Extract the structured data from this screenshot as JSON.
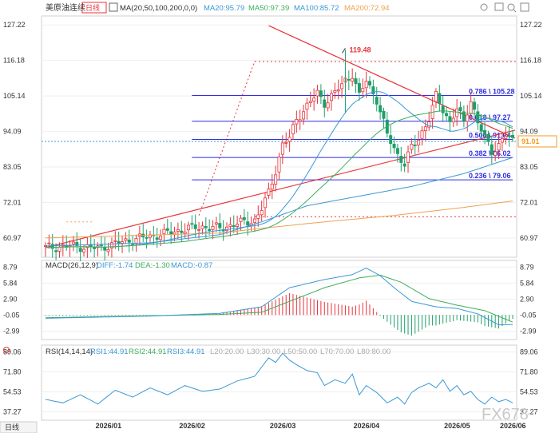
{
  "header": {
    "symbol": "美原油连续",
    "period": "日线",
    "ma_label": "MA(20,50,100,200,0,0)",
    "ma20": "MA20:95.79",
    "ma50": "MA50:97.39",
    "ma100": "MA100:85.72",
    "ma200": "MA200:72.94"
  },
  "colors": {
    "up": "#e8333a",
    "down": "#1f9f6a",
    "ma20": "#3c98d6",
    "ma50": "#3fae5a",
    "ma100": "#3c98d6",
    "ma200": "#f0a050",
    "fib": "#2e2ee0",
    "trend": "#e8333a",
    "price_tag": "#f59a23",
    "macd_diff": "#3c98d6",
    "macd_dea": "#3fae5a",
    "rsi": "#3c98d6"
  },
  "chart_data": [
    {
      "type": "candlestick",
      "x": [
        "2026/01",
        "2026/02",
        "2026/03",
        "2026/04",
        "2026/05",
        "2026/06"
      ],
      "y_ticks": [
        "127.22",
        "116.18",
        "105.14",
        "94.09",
        "83.05",
        "72.01",
        "60.97"
      ],
      "ylim": [
        55.0,
        130.0
      ],
      "high_label": "119.48",
      "current_price": "91.01",
      "fib_levels": [
        {
          "label": "0.786 \\ 105.28",
          "value": 105.28
        },
        {
          "label": "0.618 \\ 97.27",
          "value": 97.27
        },
        {
          "label": "0.500 \\ 91.64",
          "value": 91.64
        },
        {
          "label": "0.382 \\ 86.02",
          "value": 86.02
        },
        {
          "label": "0.236 \\ 79.06",
          "value": 79.06
        }
      ],
      "dotted_levels": [
        115.8,
        67.6
      ],
      "close_path": [
        [
          0,
          58.0
        ],
        [
          8,
          58.5
        ],
        [
          15,
          57.8
        ],
        [
          20,
          59.2
        ],
        [
          25,
          60.5
        ],
        [
          30,
          61.5
        ],
        [
          35,
          62.5
        ],
        [
          40,
          63.8
        ],
        [
          45,
          64.5
        ],
        [
          50,
          64.0
        ],
        [
          55,
          65.5
        ],
        [
          60,
          66.5
        ],
        [
          62,
          70
        ],
        [
          64,
          75
        ],
        [
          66,
          82
        ],
        [
          68,
          90
        ],
        [
          70,
          92
        ],
        [
          72,
          98
        ],
        [
          75,
          102
        ],
        [
          78,
          106
        ],
        [
          80,
          103
        ],
        [
          83,
          106
        ],
        [
          86,
          110
        ],
        [
          88,
          112
        ],
        [
          90,
          105
        ],
        [
          92,
          110
        ],
        [
          95,
          104
        ],
        [
          98,
          93
        ],
        [
          101,
          87
        ],
        [
          103,
          84
        ],
        [
          105,
          89
        ],
        [
          107,
          92
        ],
        [
          110,
          98
        ],
        [
          112,
          105
        ],
        [
          114,
          101
        ],
        [
          116,
          97
        ],
        [
          118,
          101
        ],
        [
          120,
          97
        ],
        [
          122,
          104
        ],
        [
          124,
          97
        ],
        [
          126,
          92
        ],
        [
          128,
          88
        ],
        [
          130,
          90
        ],
        [
          132,
          93
        ],
        [
          134,
          91
        ]
      ],
      "ma100_path": [
        [
          0,
          58.5
        ],
        [
          30,
          59.5
        ],
        [
          50,
          62
        ],
        [
          62,
          66
        ],
        [
          75,
          71
        ],
        [
          90,
          74
        ],
        [
          105,
          77
        ],
        [
          120,
          81
        ],
        [
          134,
          86
        ]
      ],
      "ma200_path": [
        [
          0,
          61
        ],
        [
          50,
          62.5
        ],
        [
          62,
          64
        ],
        [
          80,
          66
        ],
        [
          100,
          68
        ],
        [
          120,
          70.5
        ],
        [
          134,
          72.5
        ]
      ]
    },
    {
      "type": "macd",
      "title": "MACD(26,12,9)",
      "diff": "DIFF:-1.74",
      "dea": "DEA:-1.30",
      "macd": "MACD:-0.87",
      "y_ticks": [
        "8.79",
        "5.84",
        "2.90",
        "-0.05",
        "-2.99"
      ],
      "ylim": [
        -4.5,
        10.0
      ],
      "diff_path": [
        [
          0,
          -0.6
        ],
        [
          30,
          -0.2
        ],
        [
          50,
          0.3
        ],
        [
          62,
          1.5
        ],
        [
          70,
          5
        ],
        [
          80,
          6.5
        ],
        [
          88,
          7.4
        ],
        [
          92,
          8.6
        ],
        [
          96,
          7.2
        ],
        [
          100,
          5
        ],
        [
          105,
          2.5
        ],
        [
          112,
          1.5
        ],
        [
          118,
          1.2
        ],
        [
          124,
          0.2
        ],
        [
          130,
          -1.8
        ],
        [
          134,
          -1.74
        ]
      ],
      "dea_path": [
        [
          0,
          -0.5
        ],
        [
          50,
          0.1
        ],
        [
          62,
          0.5
        ],
        [
          70,
          2.5
        ],
        [
          80,
          5
        ],
        [
          90,
          6.8
        ],
        [
          96,
          7.3
        ],
        [
          102,
          6
        ],
        [
          110,
          3
        ],
        [
          118,
          1.8
        ],
        [
          126,
          0.8
        ],
        [
          134,
          -1.3
        ]
      ]
    },
    {
      "type": "line",
      "title": "RSI(14,14,14)",
      "rsi1": "RSI1:44.91",
      "rsi2": "RSI2:44.91",
      "rsi3": "RSI3:44.91",
      "l20": "L20:20.00",
      "l30": "L30:30.00",
      "l50": "L50:50.00",
      "l70": "L70:70.00",
      "l80": "L80:80.00",
      "y_ticks": [
        "89.06",
        "71.80",
        "54.53",
        "37.27"
      ],
      "ylim": [
        30,
        95
      ],
      "rsi_path": [
        [
          0,
          48
        ],
        [
          5,
          45
        ],
        [
          10,
          52
        ],
        [
          15,
          44
        ],
        [
          20,
          56
        ],
        [
          25,
          50
        ],
        [
          30,
          58
        ],
        [
          35,
          52
        ],
        [
          40,
          60
        ],
        [
          45,
          55
        ],
        [
          50,
          57
        ],
        [
          55,
          64
        ],
        [
          60,
          68
        ],
        [
          62,
          76
        ],
        [
          64,
          84
        ],
        [
          66,
          80
        ],
        [
          68,
          88
        ],
        [
          70,
          82
        ],
        [
          72,
          78
        ],
        [
          75,
          73
        ],
        [
          78,
          71
        ],
        [
          80,
          60
        ],
        [
          83,
          65
        ],
        [
          86,
          62
        ],
        [
          88,
          70
        ],
        [
          90,
          52
        ],
        [
          92,
          60
        ],
        [
          95,
          54
        ],
        [
          98,
          45
        ],
        [
          101,
          50
        ],
        [
          103,
          44
        ],
        [
          105,
          54
        ],
        [
          107,
          58
        ],
        [
          110,
          62
        ],
        [
          112,
          58
        ],
        [
          114,
          65
        ],
        [
          116,
          55
        ],
        [
          118,
          60
        ],
        [
          120,
          52
        ],
        [
          122,
          55
        ],
        [
          124,
          48
        ],
        [
          126,
          44
        ],
        [
          128,
          50
        ],
        [
          130,
          46
        ],
        [
          132,
          48
        ],
        [
          134,
          45
        ]
      ]
    }
  ],
  "bottom_bar": {
    "period": "日线"
  },
  "watermark": "FX678"
}
